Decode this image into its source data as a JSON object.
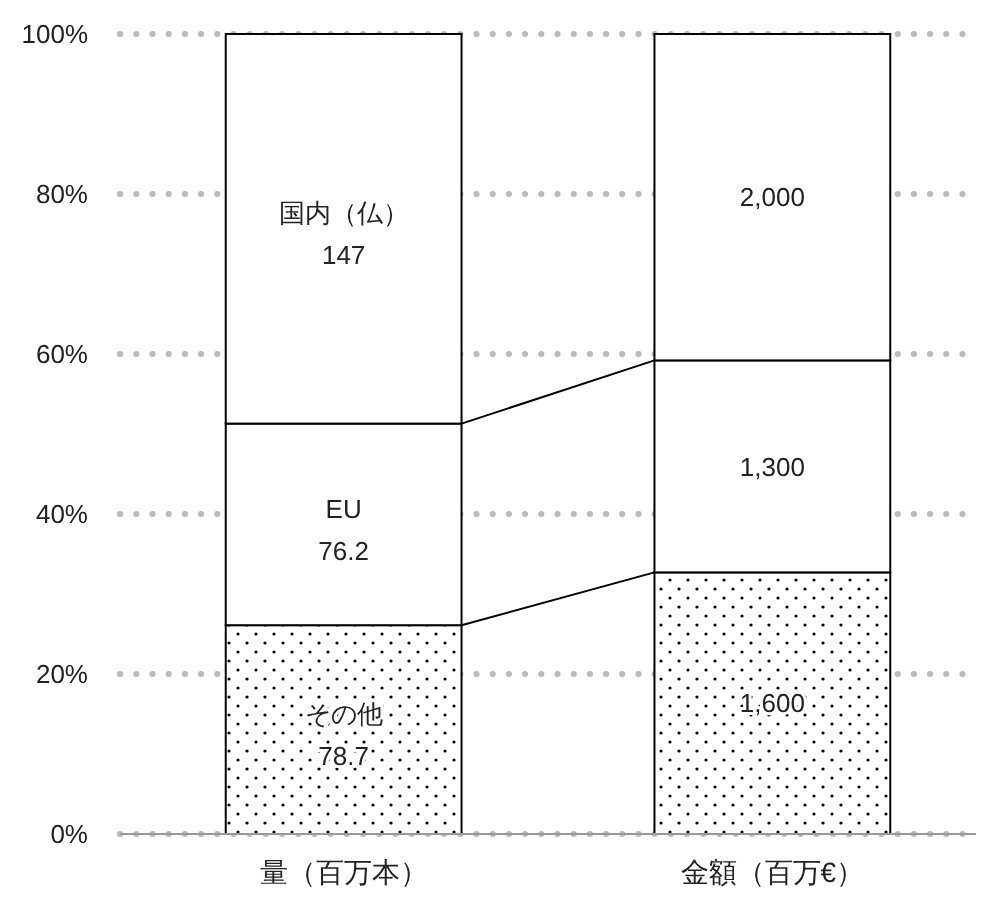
{
  "chart_data": {
    "type": "bar",
    "stacked": true,
    "categories": [
      "量（百万本）",
      "金額（百万€）"
    ],
    "series": [
      {
        "name": "その他",
        "color": "#000000",
        "values": [
          26.1,
          32.7
        ]
      },
      {
        "name": "EU",
        "color": "#ffffff",
        "values": [
          25.2,
          26.5
        ]
      },
      {
        "name": "国内（仏）",
        "color": "#ffffff",
        "values": [
          48.7,
          40.8
        ]
      }
    ],
    "annotations": [
      "78.7",
      "76.2",
      "147",
      "1,600",
      "1,300",
      "2,000"
    ],
    "ylim": [
      0,
      100
    ],
    "yticks": [
      {
        "value": 0,
        "label": "0%"
      },
      {
        "value": 20,
        "label": "20%"
      },
      {
        "value": 40,
        "label": "40%"
      },
      {
        "value": 60,
        "label": "60%"
      },
      {
        "value": 80,
        "label": "80%"
      },
      {
        "value": 100,
        "label": "100%"
      }
    ],
    "grid": "y",
    "legend": false
  }
}
